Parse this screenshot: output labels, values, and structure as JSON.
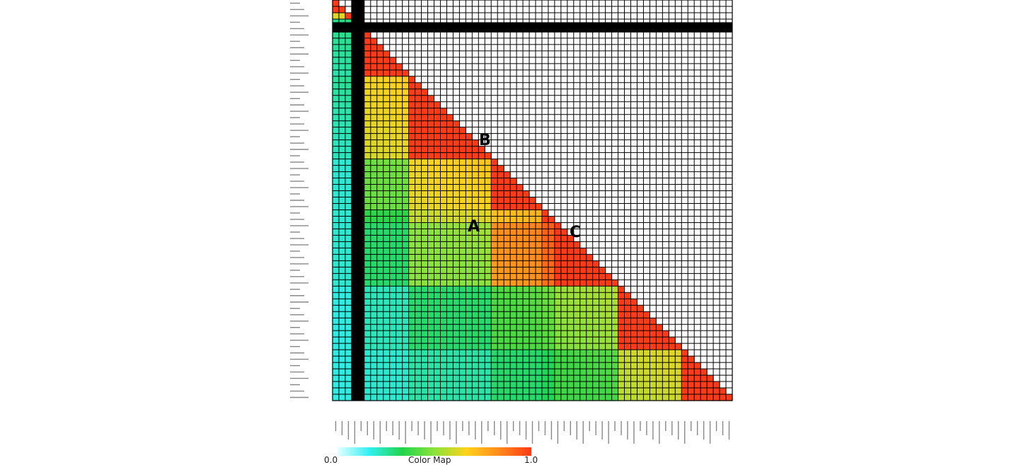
{
  "chart_data": {
    "type": "heatmap",
    "shape": "lower-triangular",
    "description_free": true,
    "block_boundaries": [
      0,
      2,
      3,
      12,
      25,
      33,
      35,
      45,
      55,
      63
    ],
    "block_values": [
      [
        1.0
      ],
      [
        0.55,
        1.0
      ],
      [
        0.2,
        0.2,
        1.0
      ],
      [
        0.22,
        0.22,
        0.6,
        1.0
      ],
      [
        0.2,
        0.2,
        0.45,
        0.62,
        1.0
      ],
      [
        0.2,
        0.2,
        0.35,
        0.58,
        0.66,
        1.0
      ],
      [
        0.2,
        0.2,
        0.3,
        0.5,
        0.78,
        0.85,
        1.0
      ],
      [
        0.18,
        0.18,
        0.22,
        0.3,
        0.4,
        0.42,
        0.48,
        1.0
      ],
      [
        0.18,
        0.18,
        0.2,
        0.24,
        0.3,
        0.32,
        0.38,
        0.55,
        1.0
      ]
    ],
    "n": 63,
    "region_labels": [
      "A",
      "B",
      "C"
    ],
    "colorbar": {
      "label": "Color Map",
      "min_label": "0.0",
      "max_label": "1.0",
      "colors": [
        "#e6ffff",
        "#2ff0f0",
        "#20d44a",
        "#8be23a",
        "#ffd21a",
        "#ff8a1a",
        "#ff3a16"
      ]
    },
    "ylim": [
      0,
      1
    ]
  },
  "colors": {
    "grid": "#000000",
    "background": "#ffffff"
  }
}
